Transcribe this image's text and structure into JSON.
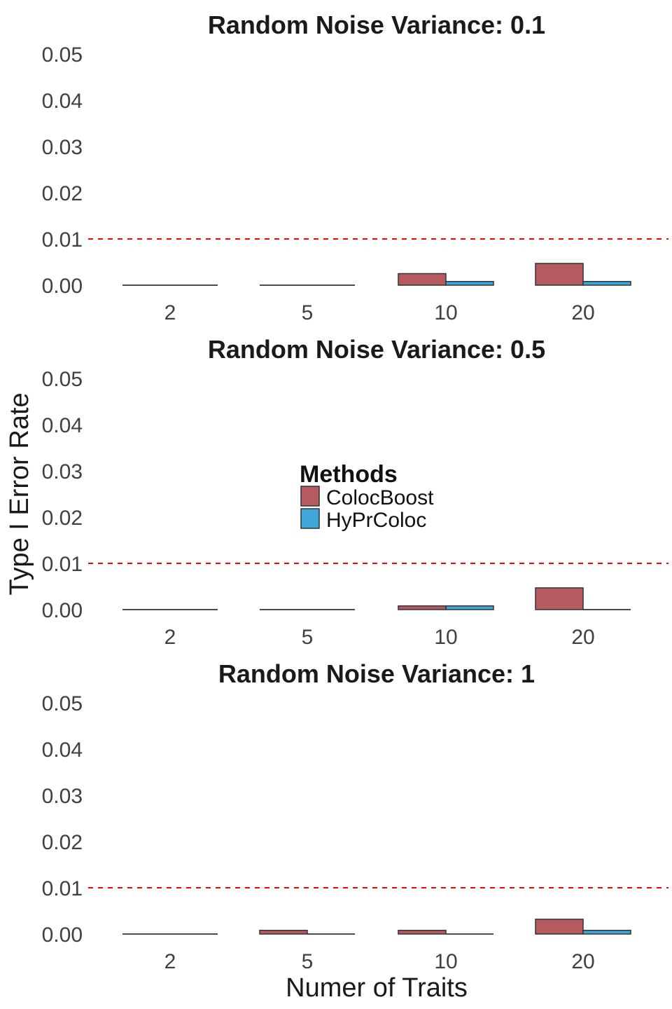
{
  "chart_data": {
    "type": "bar",
    "ylabel": "Type I Error Rate",
    "xlabel": "Numer of Traits",
    "ylim": [
      0,
      0.05
    ],
    "yticks": [
      "0.00",
      "0.01",
      "0.02",
      "0.03",
      "0.04",
      "0.05"
    ],
    "categories": [
      "2",
      "5",
      "10",
      "20"
    ],
    "reference_line": {
      "value": 0.01,
      "color": "#ff0000",
      "style": "dashed"
    },
    "legend": {
      "title": "Methods",
      "placement": "center",
      "items": [
        {
          "name": "ColocBoost",
          "color": "#b55a5e"
        },
        {
          "name": "HyPrColoc",
          "color": "#3ea6da"
        }
      ]
    },
    "panels": [
      {
        "title": "Random Noise Variance: 0.1",
        "series": [
          {
            "name": "ColocBoost",
            "values": [
              0,
              0,
              0.0025,
              0.0047
            ]
          },
          {
            "name": "HyPrColoc",
            "values": [
              0,
              0,
              0.0008,
              0.0008
            ]
          }
        ]
      },
      {
        "title": "Random Noise Variance: 0.5",
        "series": [
          {
            "name": "ColocBoost",
            "values": [
              0,
              0,
              0.0008,
              0.0047
            ]
          },
          {
            "name": "HyPrColoc",
            "values": [
              0,
              0,
              0.0008,
              0
            ]
          }
        ]
      },
      {
        "title": "Random Noise Variance: 1",
        "series": [
          {
            "name": "ColocBoost",
            "values": [
              0,
              0.0008,
              0.0008,
              0.0032
            ]
          },
          {
            "name": "HyPrColoc",
            "values": [
              0,
              0,
              0,
              0.0008
            ]
          }
        ]
      }
    ]
  }
}
